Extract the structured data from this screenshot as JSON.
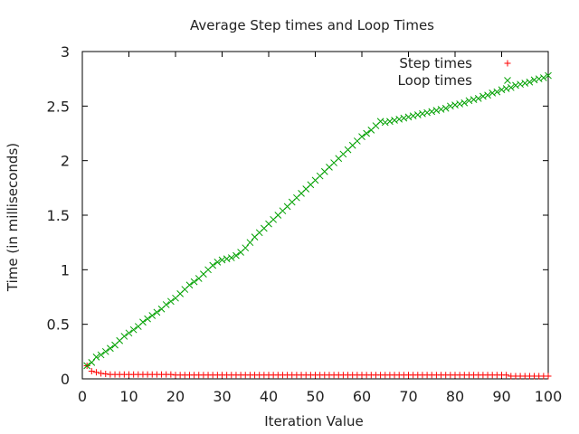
{
  "chart_data": {
    "type": "scatter",
    "title": "Average Step times and Loop Times",
    "xlabel": "Iteration Value",
    "ylabel": "Time (in milliseconds)",
    "xlim": [
      0,
      100
    ],
    "ylim": [
      0,
      3
    ],
    "xticks": [
      0,
      10,
      20,
      30,
      40,
      50,
      60,
      70,
      80,
      90,
      100
    ],
    "yticks": [
      0,
      0.5,
      1,
      1.5,
      2,
      2.5,
      3
    ],
    "xtick_labels": [
      "0",
      "10",
      "20",
      "30",
      "40",
      "50",
      "60",
      "70",
      "80",
      "90",
      "100"
    ],
    "ytick_labels": [
      "0",
      "0.5",
      "1",
      "1.5",
      "2",
      "2.5",
      "3"
    ],
    "grid": false,
    "legend_position": "top-right",
    "series": [
      {
        "name": "Step times",
        "marker": "plus",
        "color": "#ff0000",
        "x": [
          1,
          2,
          3,
          4,
          5,
          6,
          7,
          8,
          9,
          10,
          11,
          12,
          13,
          14,
          15,
          16,
          17,
          18,
          19,
          20,
          21,
          22,
          23,
          24,
          25,
          26,
          27,
          28,
          29,
          30,
          31,
          32,
          33,
          34,
          35,
          36,
          37,
          38,
          39,
          40,
          41,
          42,
          43,
          44,
          45,
          46,
          47,
          48,
          49,
          50,
          51,
          52,
          53,
          54,
          55,
          56,
          57,
          58,
          59,
          60,
          61,
          62,
          63,
          64,
          65,
          66,
          67,
          68,
          69,
          70,
          71,
          72,
          73,
          74,
          75,
          76,
          77,
          78,
          79,
          80,
          81,
          82,
          83,
          84,
          85,
          86,
          87,
          88,
          89,
          90,
          91,
          92,
          93,
          94,
          95,
          96,
          97,
          98,
          99,
          100
        ],
        "y": [
          0.12,
          0.07,
          0.06,
          0.05,
          0.045,
          0.04,
          0.04,
          0.04,
          0.04,
          0.04,
          0.04,
          0.04,
          0.04,
          0.04,
          0.04,
          0.04,
          0.04,
          0.04,
          0.04,
          0.035,
          0.035,
          0.035,
          0.035,
          0.035,
          0.035,
          0.035,
          0.035,
          0.035,
          0.035,
          0.035,
          0.035,
          0.035,
          0.035,
          0.035,
          0.035,
          0.035,
          0.035,
          0.035,
          0.035,
          0.035,
          0.035,
          0.035,
          0.035,
          0.035,
          0.035,
          0.035,
          0.035,
          0.035,
          0.035,
          0.035,
          0.035,
          0.035,
          0.035,
          0.035,
          0.035,
          0.035,
          0.035,
          0.035,
          0.035,
          0.035,
          0.035,
          0.035,
          0.035,
          0.035,
          0.035,
          0.035,
          0.035,
          0.035,
          0.035,
          0.035,
          0.035,
          0.035,
          0.035,
          0.035,
          0.035,
          0.035,
          0.035,
          0.035,
          0.035,
          0.035,
          0.035,
          0.035,
          0.035,
          0.035,
          0.035,
          0.035,
          0.035,
          0.035,
          0.035,
          0.035,
          0.035,
          0.025,
          0.025,
          0.025,
          0.025,
          0.025,
          0.025,
          0.025,
          0.025,
          0.025
        ]
      },
      {
        "name": "Loop times",
        "marker": "cross",
        "color": "#00a000",
        "x": [
          1,
          2,
          3,
          4,
          5,
          6,
          7,
          8,
          9,
          10,
          11,
          12,
          13,
          14,
          15,
          16,
          17,
          18,
          19,
          20,
          21,
          22,
          23,
          24,
          25,
          26,
          27,
          28,
          29,
          30,
          31,
          32,
          33,
          34,
          35,
          36,
          37,
          38,
          39,
          40,
          41,
          42,
          43,
          44,
          45,
          46,
          47,
          48,
          49,
          50,
          51,
          52,
          53,
          54,
          55,
          56,
          57,
          58,
          59,
          60,
          61,
          62,
          63,
          64,
          65,
          66,
          67,
          68,
          69,
          70,
          71,
          72,
          73,
          74,
          75,
          76,
          77,
          78,
          79,
          80,
          81,
          82,
          83,
          84,
          85,
          86,
          87,
          88,
          89,
          90,
          91,
          92,
          93,
          94,
          95,
          96,
          97,
          98,
          99,
          100
        ],
        "y": [
          0.12,
          0.15,
          0.2,
          0.22,
          0.25,
          0.28,
          0.31,
          0.35,
          0.39,
          0.42,
          0.45,
          0.48,
          0.52,
          0.55,
          0.58,
          0.61,
          0.64,
          0.68,
          0.71,
          0.74,
          0.78,
          0.82,
          0.86,
          0.89,
          0.92,
          0.96,
          1.0,
          1.04,
          1.07,
          1.09,
          1.1,
          1.11,
          1.13,
          1.16,
          1.2,
          1.25,
          1.3,
          1.34,
          1.38,
          1.42,
          1.46,
          1.5,
          1.54,
          1.58,
          1.62,
          1.66,
          1.7,
          1.74,
          1.78,
          1.82,
          1.86,
          1.9,
          1.94,
          1.98,
          2.02,
          2.06,
          2.1,
          2.14,
          2.18,
          2.22,
          2.25,
          2.28,
          2.32,
          2.36,
          2.35,
          2.36,
          2.37,
          2.38,
          2.39,
          2.4,
          2.41,
          2.42,
          2.43,
          2.44,
          2.45,
          2.46,
          2.47,
          2.48,
          2.5,
          2.51,
          2.52,
          2.53,
          2.55,
          2.56,
          2.57,
          2.59,
          2.6,
          2.62,
          2.63,
          2.65,
          2.66,
          2.67,
          2.69,
          2.7,
          2.71,
          2.72,
          2.74,
          2.75,
          2.76,
          2.78
        ]
      }
    ]
  }
}
